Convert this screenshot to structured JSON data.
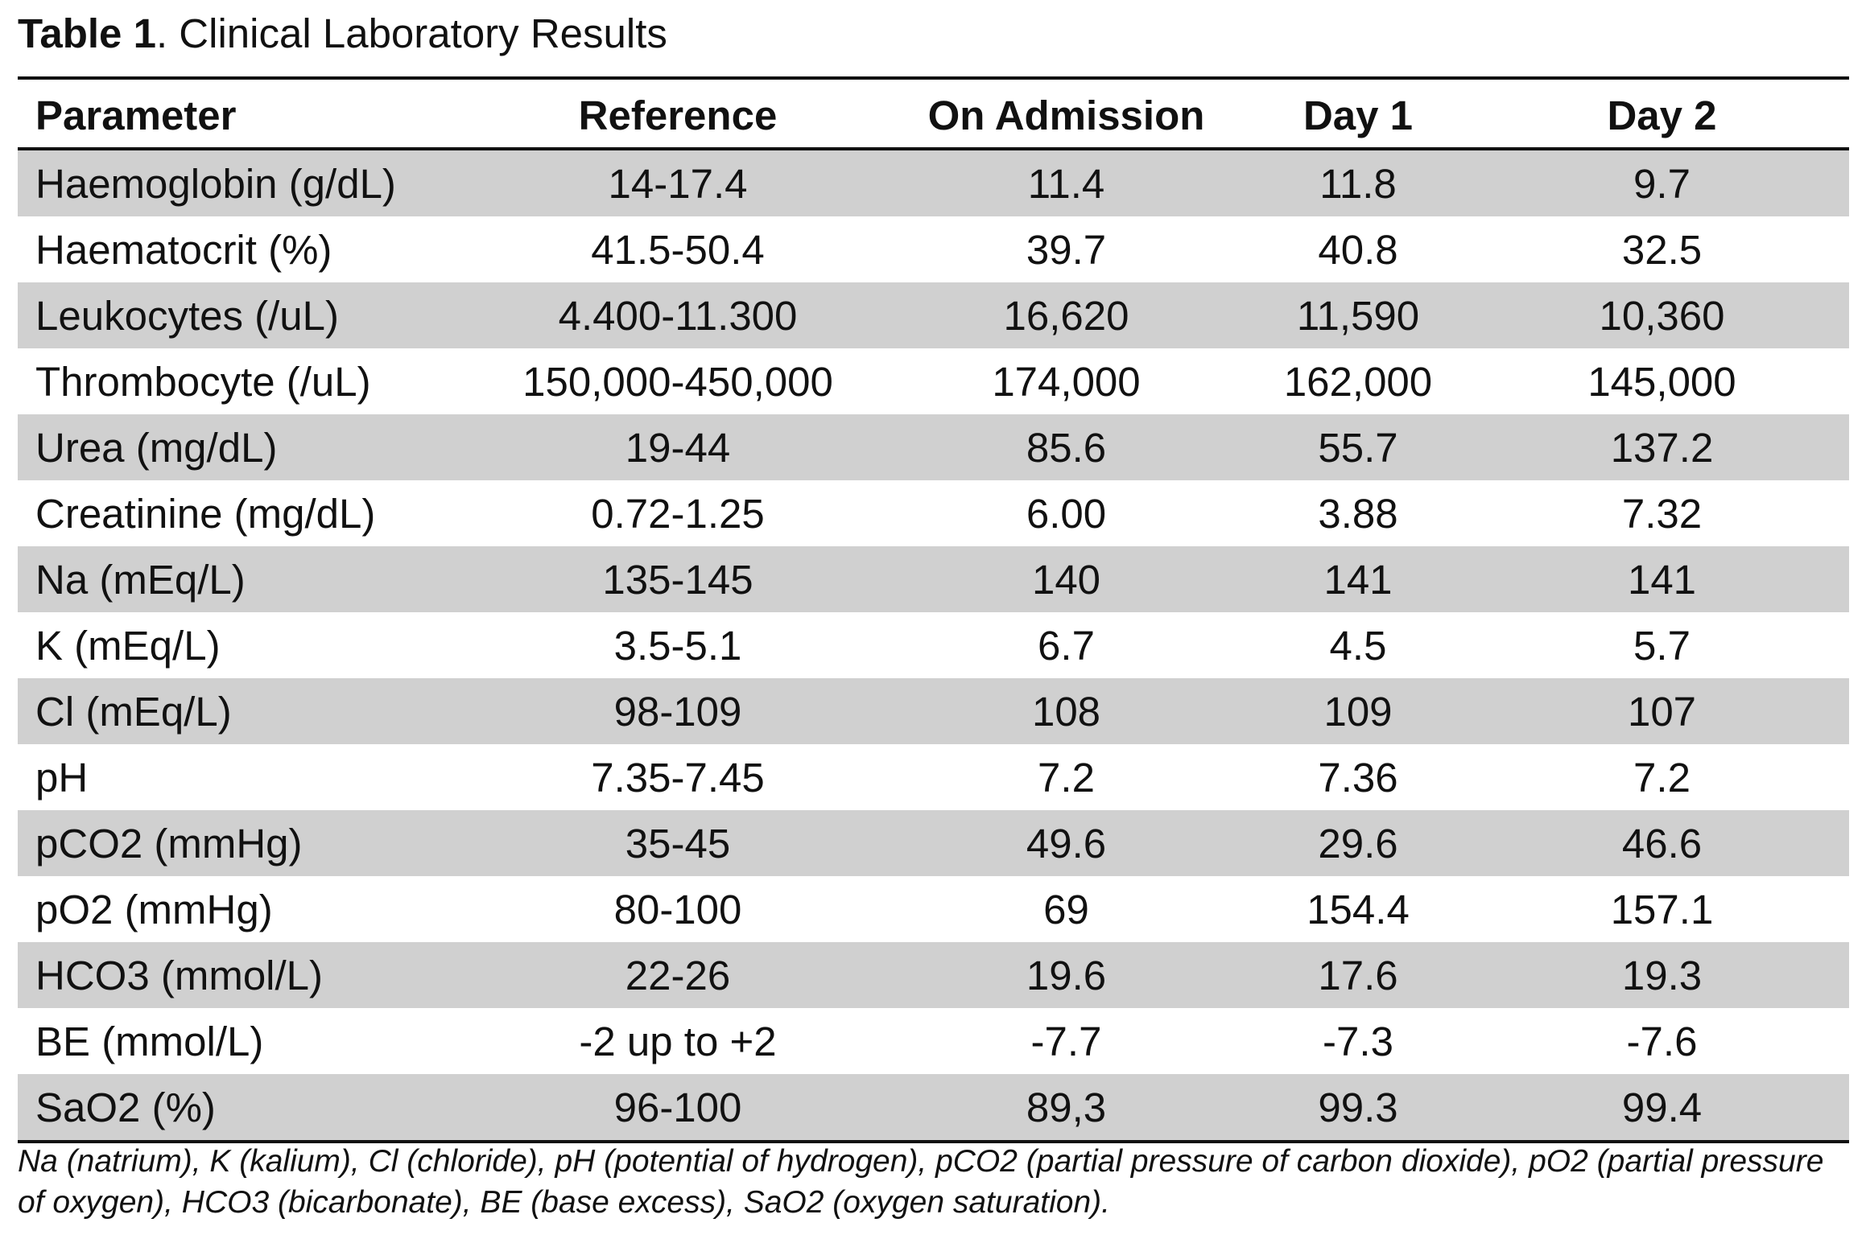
{
  "caption": {
    "label": "Table 1",
    "text": ". Clinical Laboratory Results"
  },
  "table": {
    "headers": [
      "Parameter",
      "Reference",
      "On Admission",
      "Day 1",
      "Day 2"
    ],
    "rows": [
      [
        "Haemoglobin (g/dL)",
        "14-17.4",
        "11.4",
        "11.8",
        "9.7"
      ],
      [
        "Haematocrit (%)",
        "41.5-50.4",
        "39.7",
        "40.8",
        "32.5"
      ],
      [
        "Leukocytes (/uL)",
        "4.400-11.300",
        "16,620",
        "11,590",
        "10,360"
      ],
      [
        "Thrombocyte (/uL)",
        "150,000-450,000",
        "174,000",
        "162,000",
        "145,000"
      ],
      [
        "Urea (mg/dL)",
        "19-44",
        "85.6",
        "55.7",
        "137.2"
      ],
      [
        "Creatinine (mg/dL)",
        "0.72-1.25",
        "6.00",
        "3.88",
        "7.32"
      ],
      [
        "Na (mEq/L)",
        "135-145",
        "140",
        "141",
        "141"
      ],
      [
        "K (mEq/L)",
        "3.5-5.1",
        "6.7",
        "4.5",
        "5.7"
      ],
      [
        "Cl (mEq/L)",
        "98-109",
        "108",
        "109",
        "107"
      ],
      [
        "pH",
        "7.35-7.45",
        "7.2",
        "7.36",
        "7.2"
      ],
      [
        "pCO2 (mmHg)",
        "35-45",
        "49.6",
        "29.6",
        "46.6"
      ],
      [
        "pO2 (mmHg)",
        "80-100",
        "69",
        "154.4",
        "157.1"
      ],
      [
        "HCO3 (mmol/L)",
        "22-26",
        "19.6",
        "17.6",
        "19.3"
      ],
      [
        "BE (mmol/L)",
        "-2 up to +2",
        "-7.7",
        "-7.3",
        "-7.6"
      ],
      [
        "SaO2 (%)",
        "96-100",
        "89,3",
        "99.3",
        "99.4"
      ]
    ],
    "shaded_row_color": "#d0d0d0"
  },
  "footnote": "Na (natrium), K (kalium), Cl (chloride), pH (potential of hydrogen), pCO2 (partial pressure of carbon dioxide), pO2 (partial pressure of oxygen), HCO3 (bicarbonate), BE (base excess), SaO2 (oxygen saturation)."
}
